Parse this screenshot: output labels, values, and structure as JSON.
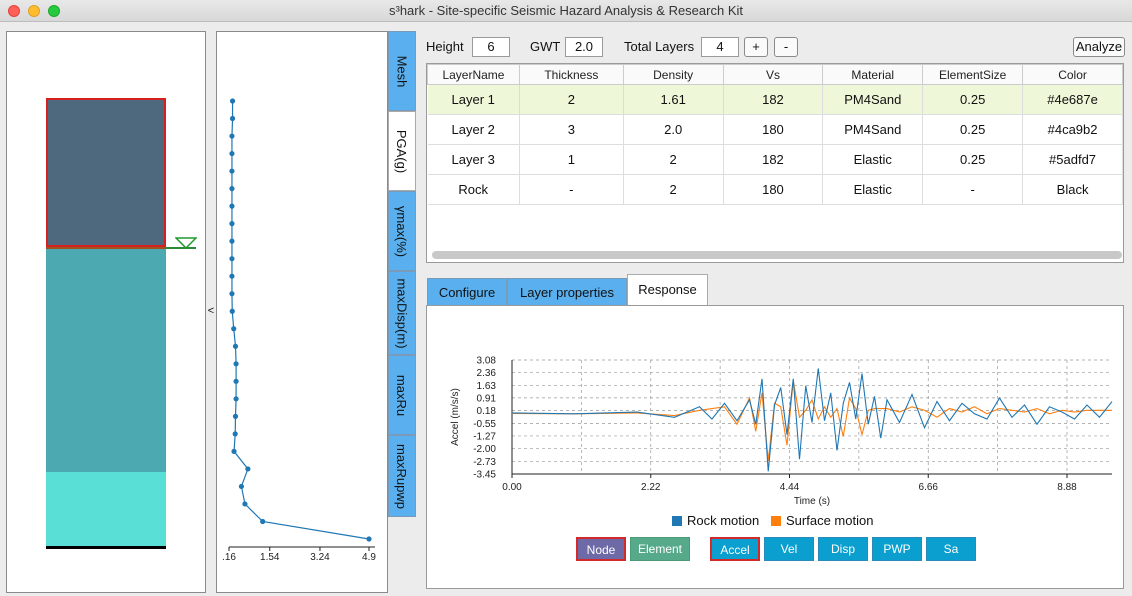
{
  "window": {
    "title": "s³hark - Site-specific Seismic Hazard Analysis & Research Kit"
  },
  "colors": {
    "layer1": "#4e687e",
    "layer2": "#4ca9b2",
    "layer3": "#5adfd7",
    "rock": "#000000",
    "accent_tab": "#5ab0ee",
    "rock_motion": "#1f77b4",
    "surface_motion": "#ff7f0e"
  },
  "profile": {
    "collapse_label": "<"
  },
  "vertical_tabs": [
    "Mesh",
    "PGA(g)",
    "γmax(%)",
    "maxDisp(m)",
    "maxRu",
    "maxRupwp"
  ],
  "pga_plot": {
    "x_ticks": [
      ".16",
      "1.54",
      "3.24",
      "4.9"
    ],
    "values": [
      0.28,
      0.28,
      0.26,
      0.26,
      0.26,
      0.26,
      0.26,
      0.26,
      0.26,
      0.26,
      0.26,
      0.26,
      0.27,
      0.32,
      0.38,
      0.4,
      0.4,
      0.4,
      0.38,
      0.37,
      0.33,
      0.8,
      0.58,
      0.7,
      1.3,
      4.9
    ]
  },
  "toolbar": {
    "height_label": "Height",
    "height_value": "6",
    "gwt_label": "GWT",
    "gwt_value": "2.0",
    "total_layers_label": "Total Layers",
    "total_layers_value": "4",
    "plus": "+",
    "minus": "-",
    "analyze": "Analyze"
  },
  "layer_table": {
    "columns": [
      "LayerName",
      "Thickness",
      "Density",
      "Vs",
      "Material",
      "ElementSize",
      "Color"
    ],
    "rows": [
      [
        "Layer 1",
        "2",
        "1.61",
        "182",
        "PM4Sand",
        "0.25",
        "#4e687e"
      ],
      [
        "Layer 2",
        "3",
        "2.0",
        "180",
        "PM4Sand",
        "0.25",
        "#4ca9b2"
      ],
      [
        "Layer 3",
        "1",
        "2",
        "182",
        "Elastic",
        "0.25",
        "#5adfd7"
      ],
      [
        "Rock",
        "-",
        "2",
        "180",
        "Elastic",
        "-",
        "Black"
      ]
    ]
  },
  "tabs": [
    "Configure",
    "Layer properties",
    "Response"
  ],
  "chart_data": {
    "type": "line",
    "xlabel": "Time (s)",
    "ylabel": "Accel (m/s/s)",
    "x_ticks": [
      "0.00",
      "2.22",
      "4.44",
      "6.66",
      "8.88"
    ],
    "y_ticks": [
      "3.08",
      "2.36",
      "1.63",
      "0.91",
      "0.18",
      "-0.55",
      "-1.27",
      "-2.00",
      "-2.73",
      "-3.45"
    ],
    "xlim": [
      0,
      9.6
    ],
    "ylim": [
      -3.45,
      3.08
    ],
    "grid": true,
    "legend": "bottom",
    "series": [
      {
        "name": "Rock motion",
        "x": [
          0,
          1.0,
          2.0,
          2.6,
          3.0,
          3.2,
          3.4,
          3.6,
          3.8,
          3.9,
          4.0,
          4.1,
          4.2,
          4.3,
          4.4,
          4.5,
          4.6,
          4.7,
          4.8,
          4.9,
          5.0,
          5.1,
          5.2,
          5.3,
          5.4,
          5.5,
          5.6,
          5.7,
          5.8,
          5.9,
          6.0,
          6.2,
          6.4,
          6.6,
          6.8,
          7.0,
          7.2,
          7.4,
          7.6,
          7.8,
          8.0,
          8.2,
          8.4,
          8.6,
          8.8,
          9.0,
          9.2,
          9.4,
          9.6
        ],
        "y": [
          0.05,
          0.0,
          0.1,
          -0.2,
          0.4,
          -0.3,
          0.6,
          -0.4,
          0.8,
          -0.6,
          2.0,
          -3.3,
          0.5,
          1.5,
          -1.2,
          2.0,
          -2.6,
          1.6,
          -0.5,
          2.6,
          -0.4,
          1.2,
          -2.1,
          0.6,
          1.8,
          -0.3,
          2.3,
          -0.6,
          1.0,
          -1.4,
          0.8,
          -0.5,
          1.1,
          -0.8,
          0.7,
          -0.4,
          0.6,
          0.0,
          -0.3,
          0.9,
          -0.2,
          0.5,
          -0.6,
          0.4,
          0.1,
          -0.3,
          0.5,
          -0.2,
          0.7
        ]
      },
      {
        "name": "Surface motion",
        "x": [
          0,
          1.0,
          2.0,
          2.6,
          3.0,
          3.4,
          3.6,
          3.8,
          3.9,
          4.0,
          4.1,
          4.2,
          4.3,
          4.4,
          4.5,
          4.6,
          4.7,
          4.8,
          4.9,
          5.0,
          5.1,
          5.2,
          5.3,
          5.4,
          5.5,
          5.6,
          5.7,
          5.8,
          6.0,
          6.2,
          6.4,
          6.6,
          6.8,
          7.0,
          7.2,
          7.4,
          7.6,
          7.8,
          8.0,
          8.2,
          8.4,
          8.6,
          8.8,
          9.0,
          9.2,
          9.4,
          9.6
        ],
        "y": [
          0.02,
          0.0,
          0.05,
          -0.1,
          0.2,
          0.4,
          -0.6,
          0.9,
          -1.0,
          1.2,
          -2.7,
          0.6,
          0.4,
          -1.8,
          1.9,
          -0.2,
          0.2,
          0.8,
          -0.3,
          0.4,
          -0.2,
          0.3,
          -1.3,
          0.9,
          0.3,
          -1.2,
          0.2,
          0.3,
          0.3,
          0.1,
          0.4,
          0.2,
          -0.2,
          0.3,
          0.1,
          0.4,
          0.0,
          0.3,
          0.2,
          0.1,
          0.3,
          0.0,
          0.2,
          0.1,
          0.2,
          0.2,
          0.2
        ]
      }
    ]
  },
  "controls": {
    "node": "Node",
    "element": "Element",
    "accel": "Accel",
    "vel": "Vel",
    "disp": "Disp",
    "pwp": "PWP",
    "sa": "Sa"
  }
}
